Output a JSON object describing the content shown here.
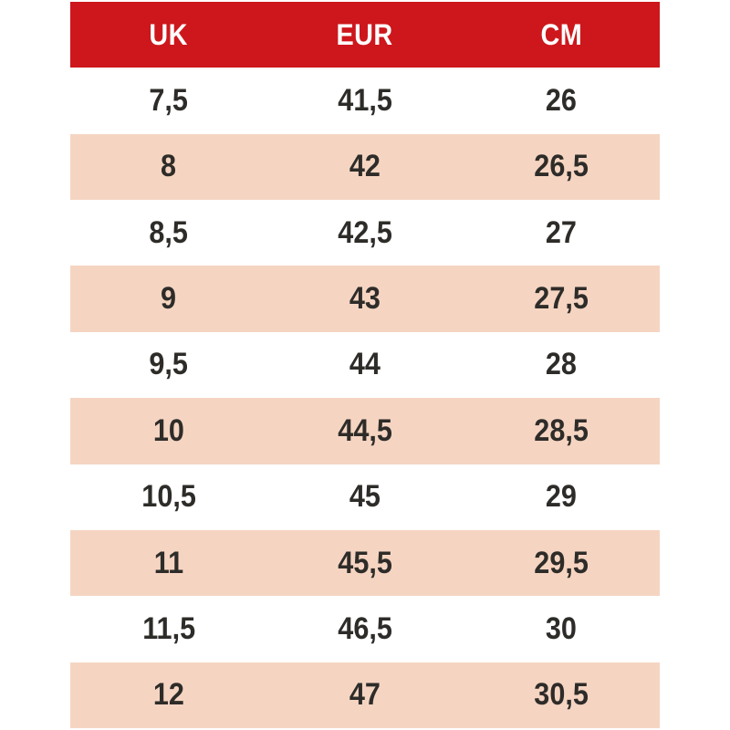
{
  "chart_data": {
    "type": "table",
    "columns": [
      "UK",
      "EUR",
      "CM"
    ],
    "rows": [
      [
        "7,5",
        "41,5",
        "26"
      ],
      [
        "8",
        "42",
        "26,5"
      ],
      [
        "8,5",
        "42,5",
        "27"
      ],
      [
        "9",
        "43",
        "27,5"
      ],
      [
        "9,5",
        "44",
        "28"
      ],
      [
        "10",
        "44,5",
        "28,5"
      ],
      [
        "10,5",
        "45",
        "29"
      ],
      [
        "11",
        "45,5",
        "29,5"
      ],
      [
        "11,5",
        "46,5",
        "30"
      ],
      [
        "12",
        "47",
        "30,5"
      ]
    ],
    "layout": {
      "header_position": "top",
      "row_striping": "white-then-pink",
      "grid": "off"
    }
  },
  "colors": {
    "header_bg": "#cd171c",
    "header_text": "#ffffff",
    "row_bg": "#ffffff",
    "row_alt_bg": "#f5d5c2",
    "text": "#2e2c29"
  }
}
